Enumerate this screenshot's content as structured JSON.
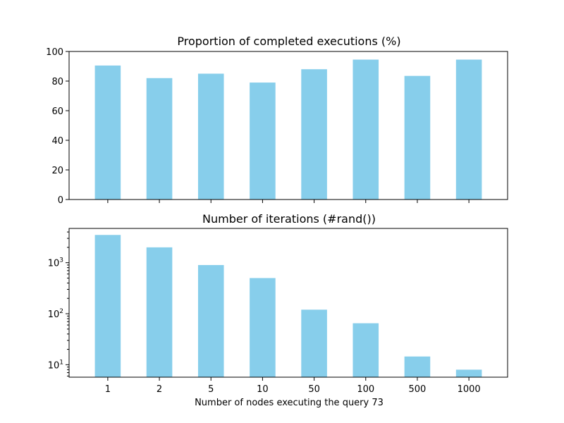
{
  "chart_data": [
    {
      "type": "bar",
      "title": "Proportion of completed executions (%)",
      "categories": [
        "1",
        "2",
        "5",
        "10",
        "50",
        "100",
        "500",
        "1000"
      ],
      "values": [
        90.5,
        82,
        85,
        79,
        88,
        94.5,
        83.5,
        94.5
      ],
      "ylim": [
        0,
        100
      ],
      "yscale": "linear",
      "yticks": [
        0,
        20,
        40,
        60,
        80,
        100
      ],
      "ytick_labels": [
        "0",
        "20",
        "40",
        "60",
        "80",
        "100"
      ],
      "show_xtick_labels": false,
      "color": "#87CEEB",
      "grid": false
    },
    {
      "type": "bar",
      "title": "Number of iterations (#rand())",
      "categories": [
        "1",
        "2",
        "5",
        "10",
        "50",
        "100",
        "500",
        "1000"
      ],
      "values": [
        3500,
        2000,
        900,
        500,
        120,
        65,
        14.5,
        8
      ],
      "ylim": [
        5.7,
        4700
      ],
      "yscale": "log",
      "yticks": [
        10,
        100,
        1000
      ],
      "ytick_labels": [
        {
          "base": "10",
          "exp": "1"
        },
        {
          "base": "10",
          "exp": "2"
        },
        {
          "base": "10",
          "exp": "3"
        }
      ],
      "show_xtick_labels": true,
      "xlabel": "Number of nodes executing the query 73",
      "color": "#87CEEB",
      "grid": false
    }
  ]
}
